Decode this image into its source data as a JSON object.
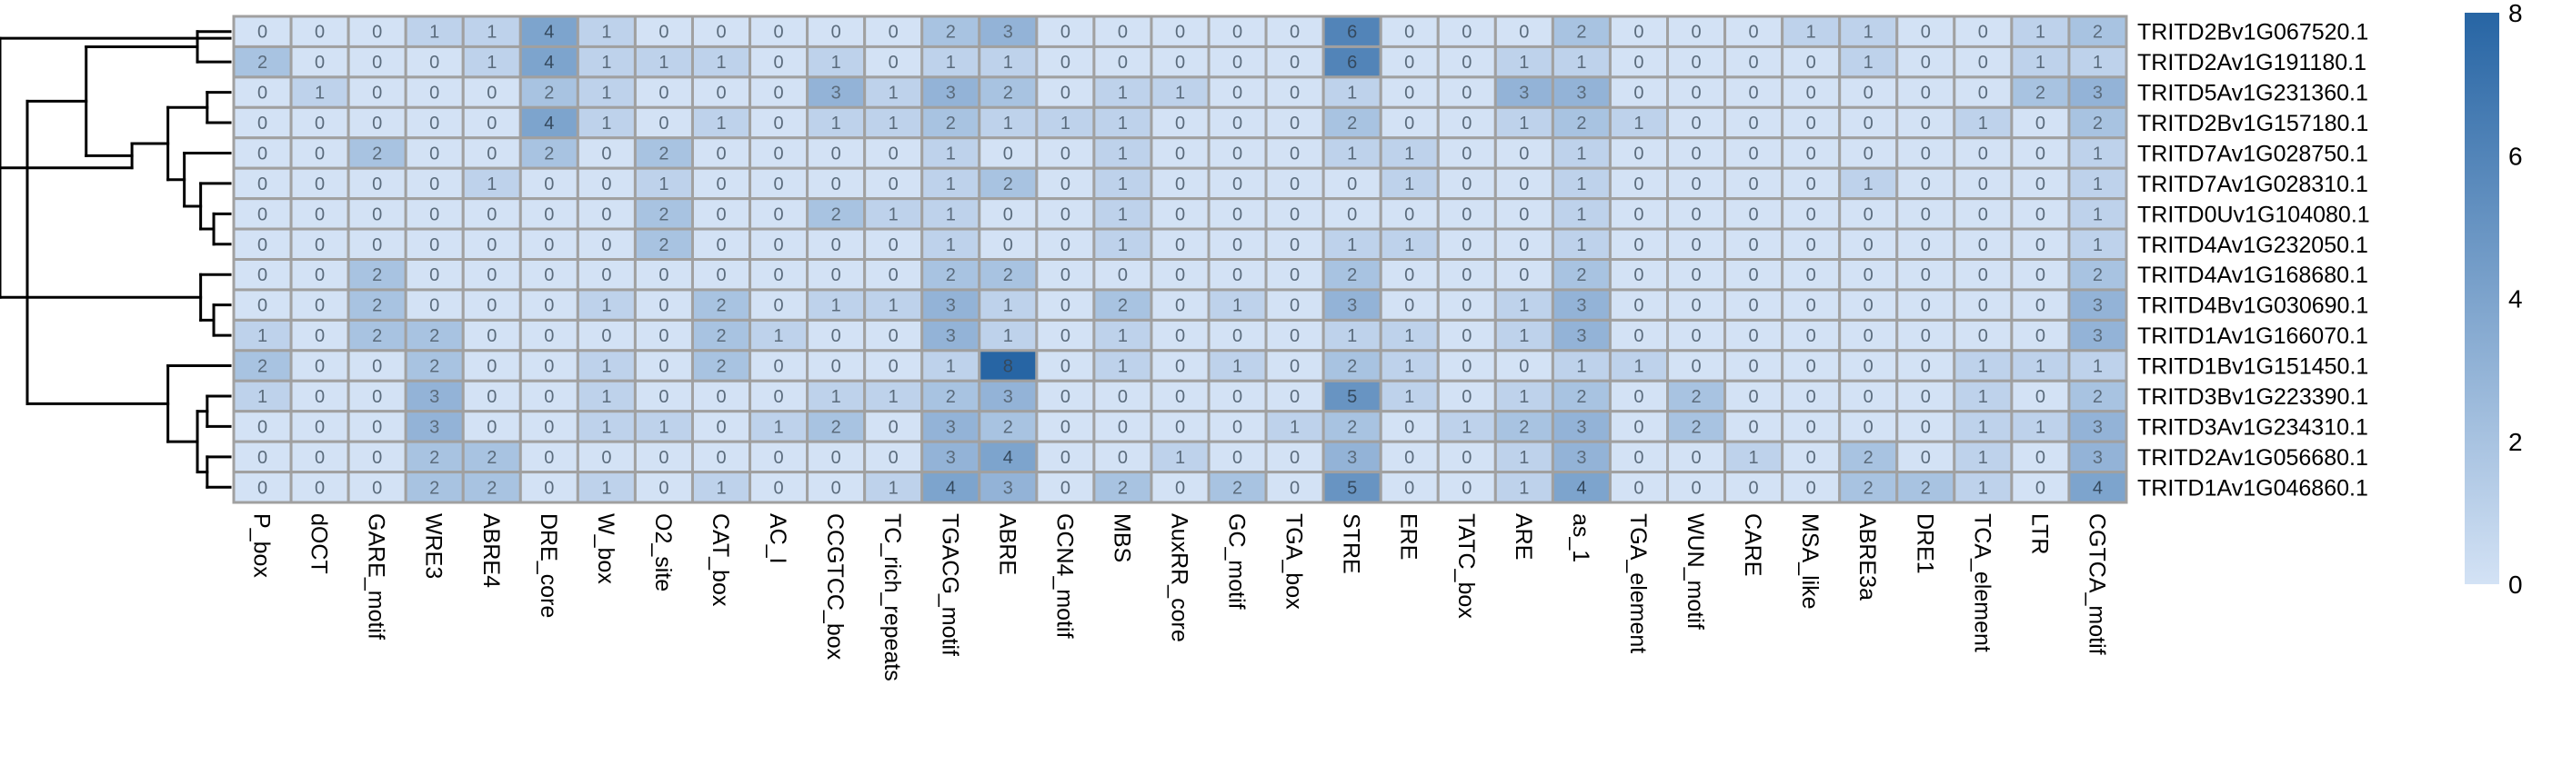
{
  "chart_data": {
    "type": "heatmap",
    "title": "",
    "xlabel": "",
    "ylabel": "",
    "rows": [
      "TRITD2Bv1G067520.1",
      "TRITD2Av1G191180.1",
      "TRITD5Av1G231360.1",
      "TRITD2Bv1G157180.1",
      "TRITD7Av1G028750.1",
      "TRITD7Av1G028310.1",
      "TRITD0Uv1G104080.1",
      "TRITD4Av1G232050.1",
      "TRITD4Av1G168680.1",
      "TRITD4Bv1G030690.1",
      "TRITD1Av1G166070.1",
      "TRITD1Bv1G151450.1",
      "TRITD3Bv1G223390.1",
      "TRITD3Av1G234310.1",
      "TRITD2Av1G056680.1",
      "TRITD1Av1G046860.1"
    ],
    "columns": [
      "P_box",
      "dOCT",
      "GARE_motif",
      "WRE3",
      "ABRE4",
      "DRE_core",
      "W_box",
      "O2_site",
      "CAT_box",
      "AC_I",
      "CCGTCC_box",
      "TC_rich_repeats",
      "TGACG_motif",
      "ABRE",
      "GCN4_motif",
      "MBS",
      "AuxRR_core",
      "GC_motif",
      "TGA_box",
      "STRE",
      "ERE",
      "TATC_box",
      "ARE",
      "as_1",
      "TGA_element",
      "WUN_motif",
      "CARE",
      "MSA_like",
      "ABRE3a",
      "DRE1",
      "TCA_element",
      "LTR",
      "CGTCA_motif"
    ],
    "values": [
      [
        0,
        0,
        0,
        1,
        1,
        4,
        1,
        0,
        0,
        0,
        0,
        0,
        2,
        3,
        0,
        0,
        0,
        0,
        0,
        6,
        0,
        0,
        0,
        2,
        0,
        0,
        0,
        1,
        1,
        0,
        0,
        1,
        2
      ],
      [
        2,
        0,
        0,
        0,
        1,
        4,
        1,
        1,
        1,
        0,
        1,
        0,
        1,
        1,
        0,
        0,
        0,
        0,
        0,
        6,
        0,
        0,
        1,
        1,
        0,
        0,
        0,
        0,
        1,
        0,
        0,
        1,
        1
      ],
      [
        0,
        1,
        0,
        0,
        0,
        2,
        1,
        0,
        0,
        0,
        3,
        1,
        3,
        2,
        0,
        1,
        1,
        0,
        0,
        1,
        0,
        0,
        3,
        3,
        0,
        0,
        0,
        0,
        0,
        0,
        0,
        2,
        3
      ],
      [
        0,
        0,
        0,
        0,
        0,
        4,
        1,
        0,
        1,
        0,
        1,
        1,
        2,
        1,
        1,
        1,
        0,
        0,
        0,
        2,
        0,
        0,
        1,
        2,
        1,
        0,
        0,
        0,
        0,
        0,
        1,
        0,
        2
      ],
      [
        0,
        0,
        2,
        0,
        0,
        2,
        0,
        2,
        0,
        0,
        0,
        0,
        1,
        0,
        0,
        1,
        0,
        0,
        0,
        1,
        1,
        0,
        0,
        1,
        0,
        0,
        0,
        0,
        0,
        0,
        0,
        0,
        1
      ],
      [
        0,
        0,
        0,
        0,
        1,
        0,
        0,
        1,
        0,
        0,
        0,
        0,
        1,
        2,
        0,
        1,
        0,
        0,
        0,
        0,
        1,
        0,
        0,
        1,
        0,
        0,
        0,
        0,
        1,
        0,
        0,
        0,
        1
      ],
      [
        0,
        0,
        0,
        0,
        0,
        0,
        0,
        2,
        0,
        0,
        2,
        1,
        1,
        0,
        0,
        1,
        0,
        0,
        0,
        0,
        0,
        0,
        0,
        1,
        0,
        0,
        0,
        0,
        0,
        0,
        0,
        0,
        1
      ],
      [
        0,
        0,
        0,
        0,
        0,
        0,
        0,
        2,
        0,
        0,
        0,
        0,
        1,
        0,
        0,
        1,
        0,
        0,
        0,
        1,
        1,
        0,
        0,
        1,
        0,
        0,
        0,
        0,
        0,
        0,
        0,
        0,
        1
      ],
      [
        0,
        0,
        2,
        0,
        0,
        0,
        0,
        0,
        0,
        0,
        0,
        0,
        2,
        2,
        0,
        0,
        0,
        0,
        0,
        2,
        0,
        0,
        0,
        2,
        0,
        0,
        0,
        0,
        0,
        0,
        0,
        0,
        2
      ],
      [
        0,
        0,
        2,
        0,
        0,
        0,
        1,
        0,
        2,
        0,
        1,
        1,
        3,
        1,
        0,
        2,
        0,
        1,
        0,
        3,
        0,
        0,
        1,
        3,
        0,
        0,
        0,
        0,
        0,
        0,
        0,
        0,
        3
      ],
      [
        1,
        0,
        2,
        2,
        0,
        0,
        0,
        0,
        2,
        1,
        0,
        0,
        3,
        1,
        0,
        1,
        0,
        0,
        0,
        1,
        1,
        0,
        1,
        3,
        0,
        0,
        0,
        0,
        0,
        0,
        0,
        0,
        3
      ],
      [
        2,
        0,
        0,
        2,
        0,
        0,
        1,
        0,
        2,
        0,
        0,
        0,
        1,
        8,
        0,
        1,
        0,
        1,
        0,
        2,
        1,
        0,
        0,
        1,
        1,
        0,
        0,
        0,
        0,
        0,
        1,
        1,
        1
      ],
      [
        1,
        0,
        0,
        3,
        0,
        0,
        1,
        0,
        0,
        0,
        1,
        1,
        2,
        3,
        0,
        0,
        0,
        0,
        0,
        5,
        1,
        0,
        1,
        2,
        0,
        2,
        0,
        0,
        0,
        0,
        1,
        0,
        2
      ],
      [
        0,
        0,
        0,
        3,
        0,
        0,
        1,
        1,
        0,
        1,
        2,
        0,
        3,
        2,
        0,
        0,
        0,
        0,
        1,
        2,
        0,
        1,
        2,
        3,
        0,
        2,
        0,
        0,
        0,
        0,
        1,
        1,
        3
      ],
      [
        0,
        0,
        0,
        2,
        2,
        0,
        0,
        0,
        0,
        0,
        0,
        0,
        3,
        4,
        0,
        0,
        1,
        0,
        0,
        3,
        0,
        0,
        1,
        3,
        0,
        0,
        1,
        0,
        2,
        0,
        1,
        0,
        3
      ],
      [
        0,
        0,
        0,
        2,
        2,
        0,
        1,
        0,
        1,
        0,
        0,
        1,
        4,
        3,
        0,
        2,
        0,
        2,
        0,
        5,
        0,
        0,
        1,
        4,
        0,
        0,
        0,
        0,
        2,
        2,
        1,
        0,
        4
      ]
    ],
    "colorbar": {
      "min": 0,
      "max": 8,
      "ticks": [
        0,
        2,
        4,
        6,
        8
      ],
      "low_color": "#d3e2f5",
      "high_color": "#2765a4"
    },
    "grid_line_color": "#a0a0a0",
    "row_dendrogram": "left",
    "cell_numbers_shown": true
  }
}
